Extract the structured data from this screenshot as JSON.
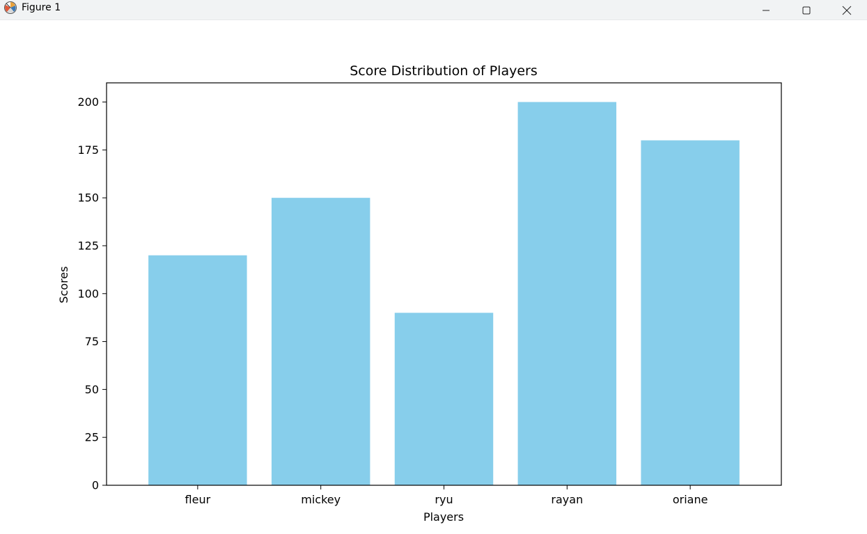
{
  "window": {
    "title": "Figure 1",
    "icon": "matplotlib-figure-icon",
    "controls": {
      "minimize": "minimize-icon",
      "maximize": "maximize-icon",
      "close": "close-icon"
    }
  },
  "chart_data": {
    "type": "bar",
    "title": "Score Distribution of Players",
    "xlabel": "Players",
    "ylabel": "Scores",
    "categories": [
      "fleur",
      "mickey",
      "ryu",
      "rayan",
      "oriane"
    ],
    "values": [
      120,
      150,
      90,
      200,
      180
    ],
    "ylim": [
      0,
      210
    ],
    "yticks": [
      0,
      25,
      50,
      75,
      100,
      125,
      150,
      175,
      200
    ],
    "ytick_labels": [
      "0",
      "25",
      "50",
      "75",
      "100",
      "125",
      "150",
      "175",
      "200"
    ],
    "bar_color": "#87ceeb",
    "grid": false,
    "legend": "none"
  }
}
